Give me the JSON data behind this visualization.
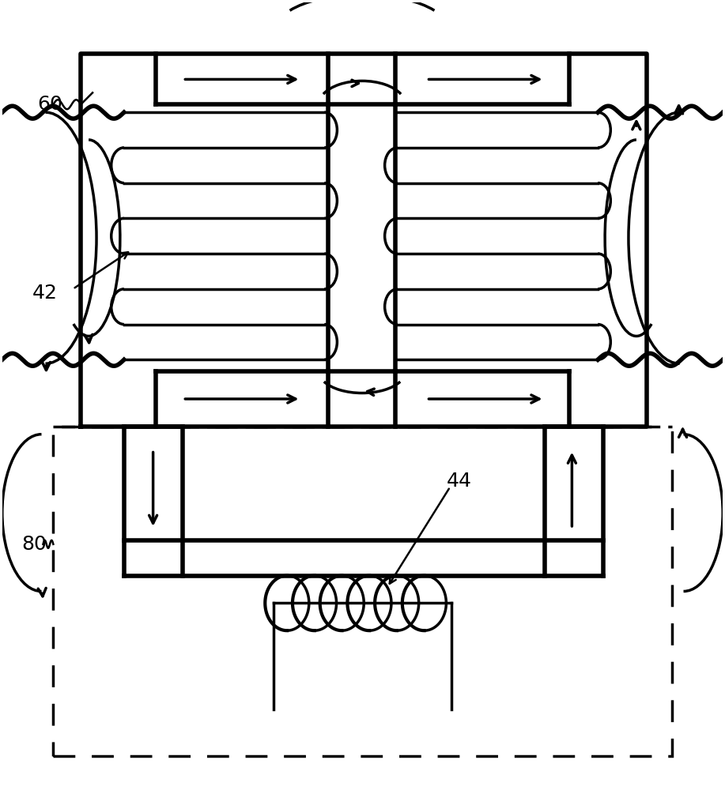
{
  "bg_color": "#ffffff",
  "line_color": "#000000",
  "lw_thin": 1.8,
  "lw_med": 2.5,
  "lw_thick": 4.0,
  "fig_width": 9.17,
  "fig_height": 10.0
}
